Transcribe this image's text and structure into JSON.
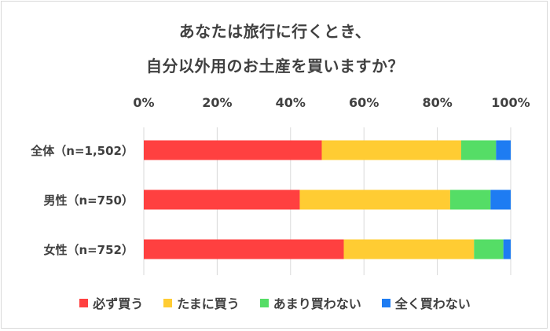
{
  "chart_data": {
    "type": "bar",
    "orientation": "horizontal",
    "stacked": true,
    "title": "あなたは旅行に行くとき、",
    "subtitle": "自分以外用のお土産を買いますか？",
    "categories": [
      "全体（n=1,502）",
      "男性（n=750）",
      "女性（n=752）"
    ],
    "x_ticks": [
      "0%",
      "20%",
      "40%",
      "60%",
      "80%",
      "100%"
    ],
    "xlim": [
      0,
      100
    ],
    "grid": true,
    "legend_position": "bottom",
    "series": [
      {
        "name": "必ず買う",
        "color": "#ff4040",
        "values": [
          48.5,
          42.5,
          54.5
        ]
      },
      {
        "name": "たまに買う",
        "color": "#ffcc33",
        "values": [
          38.0,
          41.0,
          35.5
        ]
      },
      {
        "name": "あまり買わない",
        "color": "#55dd66",
        "values": [
          9.5,
          11.0,
          8.0
        ]
      },
      {
        "name": "全く買わない",
        "color": "#1e7cf2",
        "values": [
          4.0,
          5.5,
          2.0
        ]
      }
    ]
  }
}
